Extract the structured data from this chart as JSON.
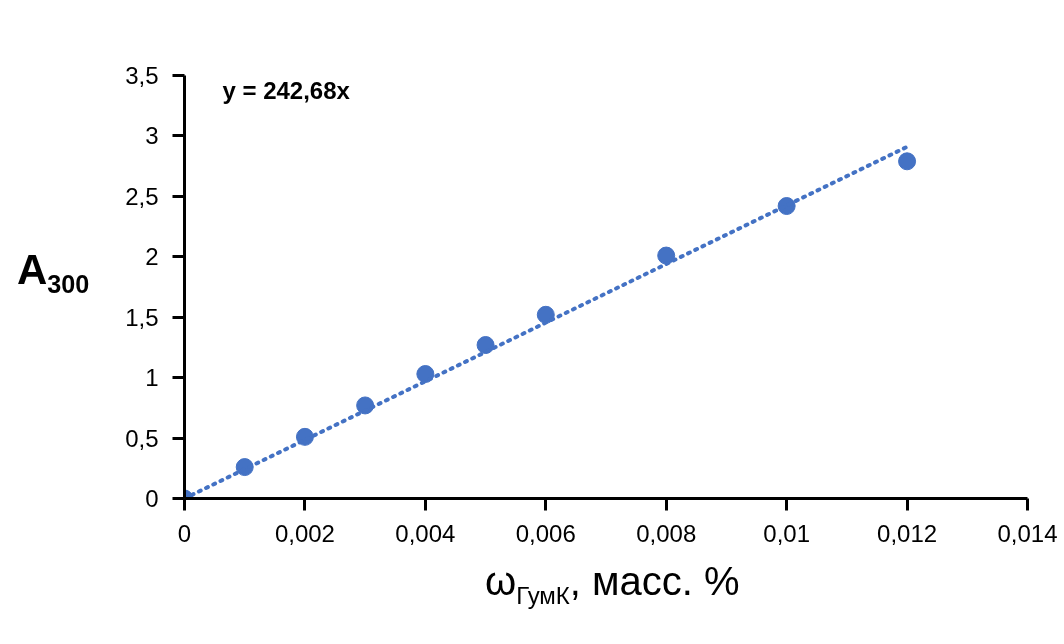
{
  "chart_data": {
    "type": "scatter",
    "xlabel": "ω$_{ГумК}$, масс. %",
    "ylabel": "A$_{300}$",
    "annotations": [
      "y = 242,68x"
    ],
    "series": [
      {
        "marker": "circle",
        "color": "#4472c4",
        "x": [
          0,
          0.001,
          0.002,
          0.003,
          0.004,
          0.005,
          0.006,
          0.008,
          0.01,
          0.012
        ],
        "values": [
          0,
          0.26,
          0.51,
          0.77,
          1.03,
          1.27,
          1.52,
          2.01,
          2.42,
          2.79
        ]
      },
      {
        "type": "line",
        "line_style": "dotted",
        "color": "#4472c4",
        "x": [
          0,
          0.012
        ],
        "values": [
          0,
          2.91
        ]
      }
    ],
    "xlim": [
      0,
      0.014
    ],
    "ylim": [
      0,
      3.5
    ],
    "xticks": [
      0,
      {
        "value": 0.002,
        "label": "0,002"
      },
      {
        "value": 0.004,
        "label": "0,004"
      },
      {
        "value": 0.006,
        "label": "0,006"
      },
      {
        "value": 0.008,
        "label": "0,008"
      },
      {
        "value": 0.01,
        "label": "0,01"
      },
      {
        "value": 0.012,
        "label": "0,012"
      },
      {
        "value": 0.014,
        "label": "0,014"
      }
    ],
    "yticks": [
      0,
      {
        "value": 0.5,
        "label": "0,5"
      },
      1,
      {
        "value": 1.5,
        "label": "1,5"
      },
      2,
      {
        "value": 2.5,
        "label": "2,5"
      },
      3,
      {
        "value": 3.5,
        "label": "3,5"
      }
    ],
    "grid": false
  }
}
